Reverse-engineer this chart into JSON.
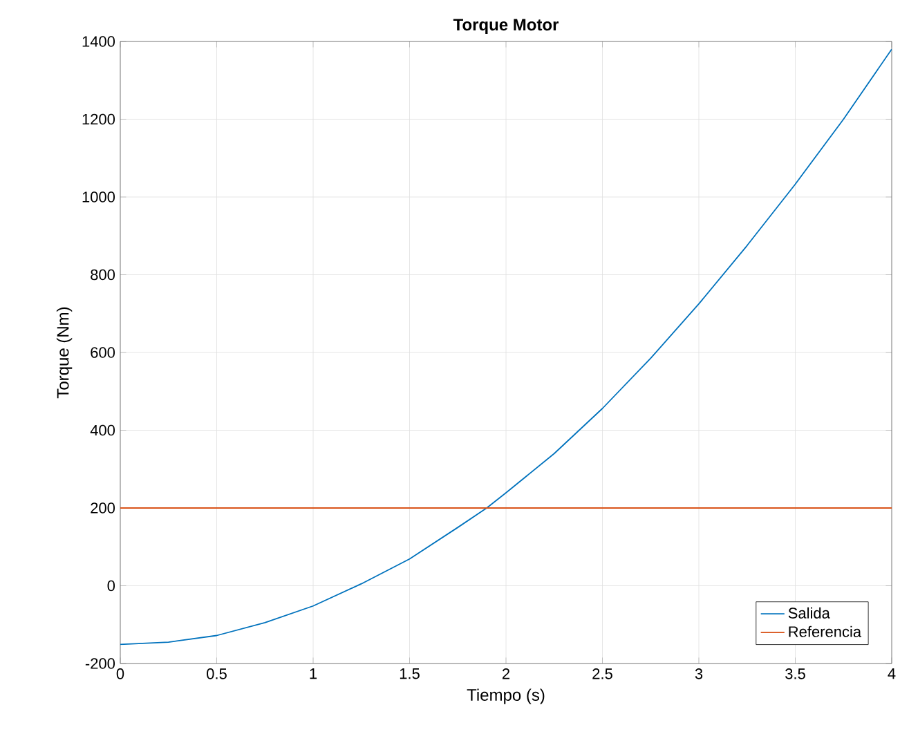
{
  "chart_data": {
    "type": "line",
    "title": "Torque Motor",
    "xlabel": "Tiempo (s)",
    "ylabel": "Torque (Nm)",
    "xlim": [
      0,
      4
    ],
    "ylim": [
      -200,
      1400
    ],
    "xticks": [
      0,
      0.5,
      1,
      1.5,
      2,
      2.5,
      3,
      3.5,
      4
    ],
    "yticks": [
      -200,
      0,
      200,
      400,
      600,
      800,
      1000,
      1200,
      1400
    ],
    "grid": true,
    "legend": "bottom right",
    "marker": "none",
    "line_style": "solid",
    "series": [
      {
        "name": "Salida",
        "color": "#0072bd",
        "x": [
          0,
          0.25,
          0.5,
          0.75,
          1,
          1.25,
          1.5,
          1.75,
          1.9,
          2,
          2.25,
          2.5,
          2.75,
          3,
          3.25,
          3.5,
          3.75,
          4
        ],
        "values": [
          -151,
          -145,
          -128,
          -95,
          -52,
          5,
          69,
          150,
          200,
          239,
          340,
          456,
          585,
          725,
          875,
          1033,
          1200,
          1380
        ]
      },
      {
        "name": "Referencia",
        "color": "#d95319",
        "x": [
          0,
          4
        ],
        "values": [
          200,
          200
        ]
      }
    ]
  }
}
